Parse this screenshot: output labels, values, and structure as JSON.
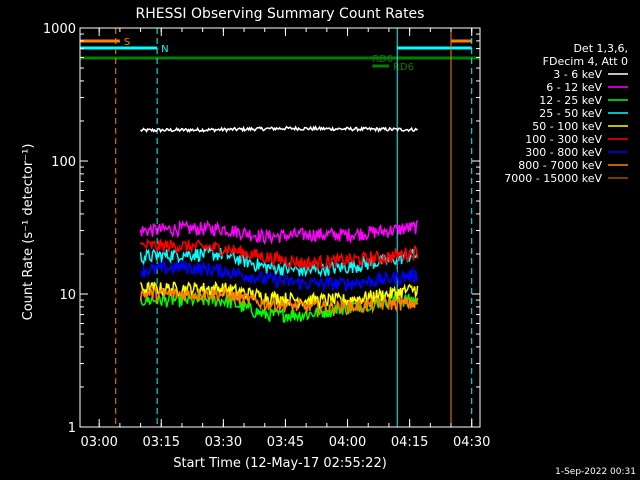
{
  "chart_data": {
    "type": "line",
    "title": "RHESSI Observing Summary Count Rates",
    "xlabel": "Start Time (12-May-17 02:55:22)",
    "ylabel": "Count Rate (s⁻¹ detector⁻¹)",
    "ylim": [
      1,
      1000
    ],
    "y_scale": "log",
    "y_ticks": [
      {
        "value": 1,
        "label": "1"
      },
      {
        "value": 10,
        "label": "10"
      },
      {
        "value": 100,
        "label": "100"
      },
      {
        "value": 1000,
        "label": "1000"
      }
    ],
    "xlim": [
      "02:55:22",
      "04:32:00"
    ],
    "x_ticks": [
      {
        "value": "03:00",
        "label": "03:00"
      },
      {
        "value": "03:15",
        "label": "03:15"
      },
      {
        "value": "03:30",
        "label": "03:30"
      },
      {
        "value": "03:45",
        "label": "03:45"
      },
      {
        "value": "04:00",
        "label": "04:00"
      },
      {
        "value": "04:15",
        "label": "04:15"
      },
      {
        "value": "04:30",
        "label": "04:30"
      }
    ],
    "legend": {
      "header": [
        "Det 1,3,6,",
        "FDecim 4, Att 0"
      ],
      "position": "right"
    },
    "series": [
      {
        "name": "3 - 6 keV",
        "color": "#ffffff",
        "start": "03:10",
        "end": "04:17",
        "points": [
          [
            "03:10",
            170
          ],
          [
            "03:30",
            172
          ],
          [
            "03:45",
            176
          ],
          [
            "04:00",
            174
          ],
          [
            "04:17",
            172
          ]
        ]
      },
      {
        "name": "6 - 12 keV",
        "color": "#ff00ff",
        "start": "03:10",
        "end": "04:17",
        "points": [
          [
            "03:10",
            30
          ],
          [
            "03:20",
            31
          ],
          [
            "03:30",
            31
          ],
          [
            "03:40",
            27
          ],
          [
            "03:50",
            28
          ],
          [
            "04:00",
            28
          ],
          [
            "04:10",
            30
          ],
          [
            "04:17",
            32
          ]
        ]
      },
      {
        "name": "12 - 25 keV",
        "color": "#00ff00",
        "start": "03:10",
        "end": "04:17",
        "points": [
          [
            "03:10",
            9
          ],
          [
            "03:20",
            9
          ],
          [
            "03:30",
            9
          ],
          [
            "03:40",
            7
          ],
          [
            "03:50",
            7
          ],
          [
            "04:00",
            8
          ],
          [
            "04:10",
            9
          ],
          [
            "04:17",
            9
          ]
        ]
      },
      {
        "name": "25 - 50 keV",
        "color": "#00ffff",
        "start": "03:10",
        "end": "04:17",
        "points": [
          [
            "03:10",
            19
          ],
          [
            "03:20",
            20
          ],
          [
            "03:30",
            20
          ],
          [
            "03:40",
            16
          ],
          [
            "03:50",
            15
          ],
          [
            "04:00",
            16
          ],
          [
            "04:10",
            18
          ],
          [
            "04:17",
            20
          ]
        ]
      },
      {
        "name": "50 - 100 keV",
        "color": "#ffff00",
        "start": "03:10",
        "end": "04:17",
        "points": [
          [
            "03:10",
            11
          ],
          [
            "03:20",
            11
          ],
          [
            "03:30",
            11
          ],
          [
            "03:40",
            9.5
          ],
          [
            "03:50",
            9
          ],
          [
            "04:00",
            9
          ],
          [
            "04:10",
            10
          ],
          [
            "04:17",
            11
          ]
        ]
      },
      {
        "name": "100 - 300 keV",
        "color": "#ff0000",
        "start": "03:10",
        "end": "04:17",
        "points": [
          [
            "03:10",
            23
          ],
          [
            "03:20",
            23
          ],
          [
            "03:30",
            22
          ],
          [
            "03:40",
            19
          ],
          [
            "03:50",
            17
          ],
          [
            "04:00",
            18
          ],
          [
            "04:10",
            19
          ],
          [
            "04:17",
            21
          ]
        ]
      },
      {
        "name": "300 - 800 keV",
        "color": "#0000ff",
        "start": "03:10",
        "end": "04:17",
        "points": [
          [
            "03:10",
            15
          ],
          [
            "03:20",
            16
          ],
          [
            "03:30",
            15
          ],
          [
            "03:40",
            13
          ],
          [
            "03:50",
            12
          ],
          [
            "04:00",
            12
          ],
          [
            "04:10",
            13
          ],
          [
            "04:17",
            14
          ]
        ]
      },
      {
        "name": "800 - 7000 keV",
        "color": "#ff8000",
        "start": "03:10",
        "end": "04:17",
        "points": [
          [
            "03:10",
            10
          ],
          [
            "03:20",
            10
          ],
          [
            "03:30",
            10
          ],
          [
            "03:40",
            8.5
          ],
          [
            "03:50",
            8
          ],
          [
            "04:00",
            8
          ],
          [
            "04:10",
            8.5
          ],
          [
            "04:17",
            8.5
          ]
        ]
      },
      {
        "name": "7000 - 15000 keV",
        "color": "#a05000",
        "start": null,
        "end": null,
        "points": []
      }
    ],
    "flags": [
      {
        "label": "S",
        "color": "#ff8000",
        "segments": [
          [
            "02:55:22",
            "03:05"
          ],
          [
            "04:25",
            "04:30"
          ]
        ]
      },
      {
        "label": "N",
        "color": "#00ffff",
        "segments": [
          [
            "02:55:22",
            "03:14"
          ],
          [
            "04:12",
            "04:30"
          ]
        ]
      },
      {
        "label": "RD0",
        "color": "#008000",
        "segments": [
          [
            "02:55:22",
            "04:05"
          ],
          [
            "04:05",
            "04:32:00"
          ]
        ]
      },
      {
        "label": "RD6",
        "color": "#008000",
        "segments": [
          [
            "04:06",
            "04:10"
          ]
        ]
      }
    ],
    "vertical_lines": [
      {
        "time": "02:55:22",
        "color": "#00ffff",
        "style": "solid"
      },
      {
        "time": "03:04",
        "color": "#ff8000",
        "style": "dashed"
      },
      {
        "time": "03:14",
        "color": "#00ffff",
        "style": "dashed"
      },
      {
        "time": "04:12",
        "color": "#00ffff",
        "style": "solid"
      },
      {
        "time": "04:25",
        "color": "#ff8000",
        "style": "solid"
      },
      {
        "time": "04:30",
        "color": "#00ffff",
        "style": "dashed"
      }
    ]
  },
  "footer": {
    "timestamp": "1-Sep-2022 00:31"
  }
}
